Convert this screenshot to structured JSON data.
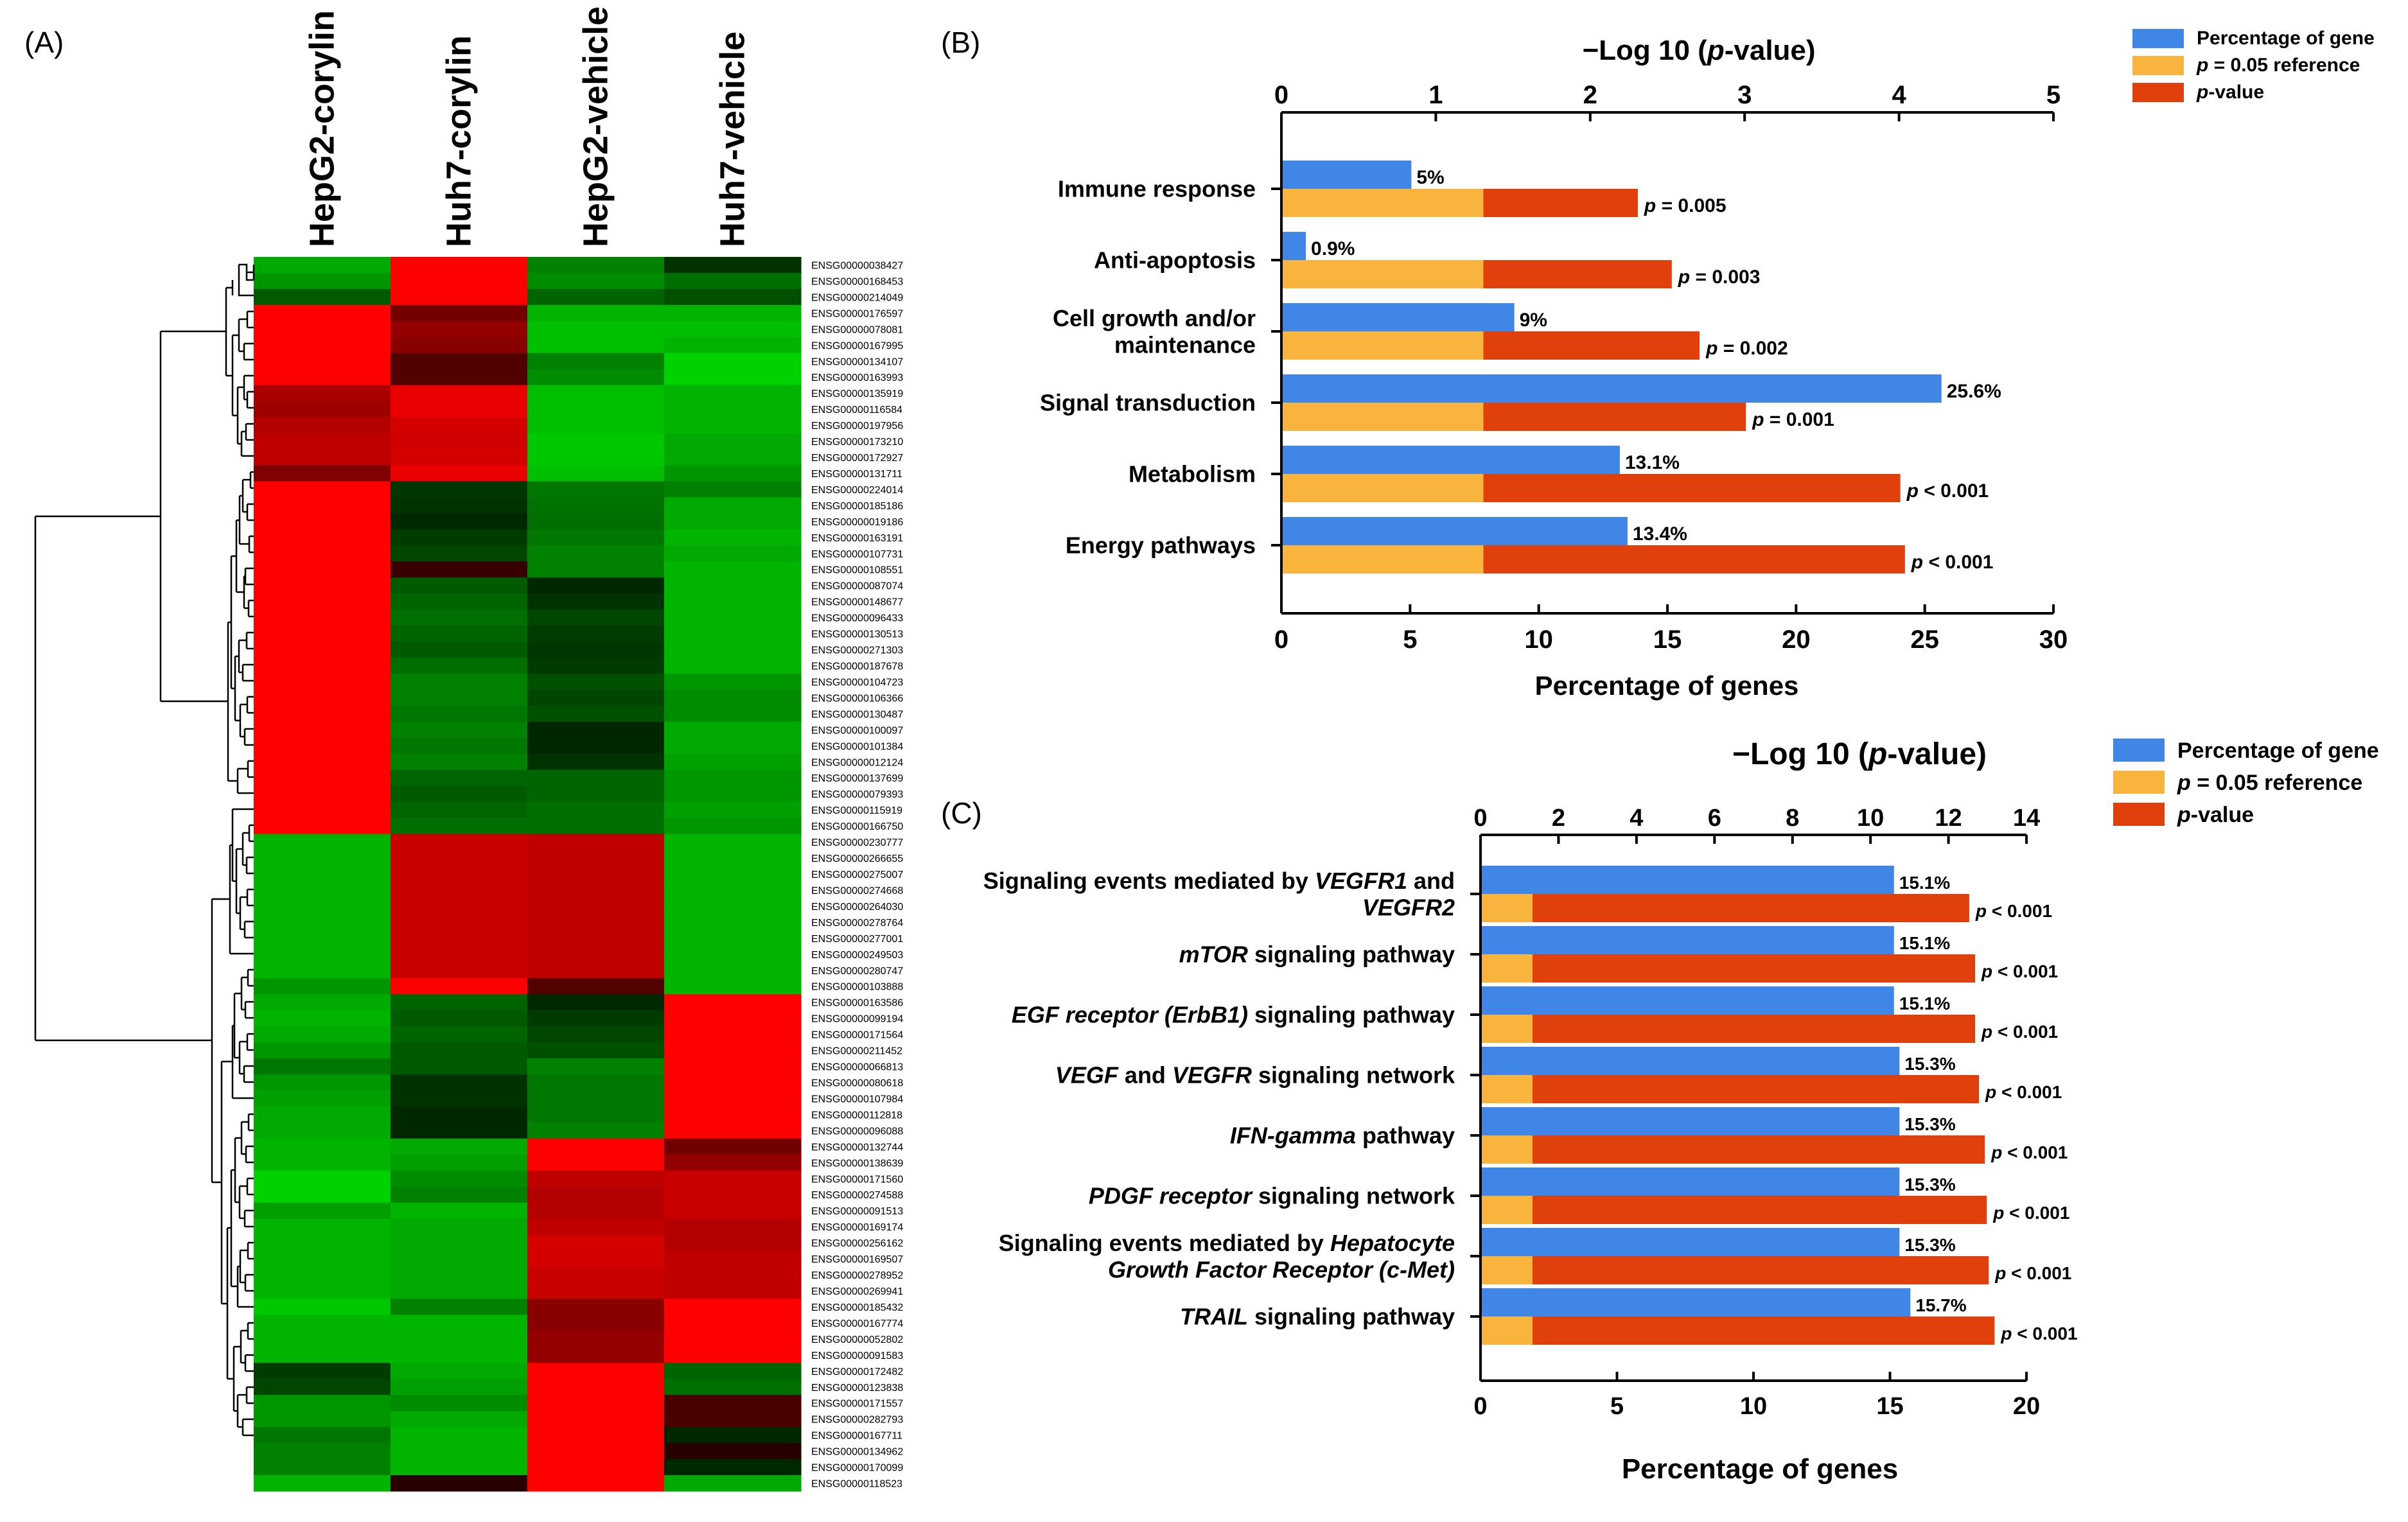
{
  "panel_labels": {
    "a": "(A)",
    "b": "(B)",
    "c": "(C)"
  },
  "colors": {
    "blue": "#3F86E6",
    "yellow": "#F9B43D",
    "red": "#E0410C",
    "hm_red": "#FF0000",
    "hm_green": "#00B000"
  },
  "chart_data": [
    {
      "panel": "A",
      "type": "heatmap",
      "columns": [
        "HepG2-corylin",
        "Huh7-corylin",
        "HepG2-vehicle",
        "Huh7-vehicle"
      ],
      "rows": [
        "ENSG00000038427",
        "ENSG00000168453",
        "ENSG00000214049",
        "ENSG00000176597",
        "ENSG00000078081",
        "ENSG00000167995",
        "ENSG00000134107",
        "ENSG00000163993",
        "ENSG00000135919",
        "ENSG00000116584",
        "ENSG00000197956",
        "ENSG00000173210",
        "ENSG00000172927",
        "ENSG00000131711",
        "ENSG00000224014",
        "ENSG00000185186",
        "ENSG00000019186",
        "ENSG00000163191",
        "ENSG00000107731",
        "ENSG00000108551",
        "ENSG00000087074",
        "ENSG00000148677",
        "ENSG00000096433",
        "ENSG00000130513",
        "ENSG00000271303",
        "ENSG00000187678",
        "ENSG00000104723",
        "ENSG00000106366",
        "ENSG00000130487",
        "ENSG00000100097",
        "ENSG00000101384",
        "ENSG00000012124",
        "ENSG00000137699",
        "ENSG00000079393",
        "ENSG00000115919",
        "ENSG00000166750",
        "ENSG00000230777",
        "ENSG00000266655",
        "ENSG00000275007",
        "ENSG00000274668",
        "ENSG00000264030",
        "ENSG00000278764",
        "ENSG00000277001",
        "ENSG00000249503",
        "ENSG00000280747",
        "ENSG00000103888",
        "ENSG00000163586",
        "ENSG00000099194",
        "ENSG00000171564",
        "ENSG00000211452",
        "ENSG00000066813",
        "ENSG00000080618",
        "ENSG00000107984",
        "ENSG00000112818",
        "ENSG00000096088",
        "ENSG00000132744",
        "ENSG00000138639",
        "ENSG00000171560",
        "ENSG00000274588",
        "ENSG00000091513",
        "ENSG00000169174",
        "ENSG00000256162",
        "ENSG00000169507",
        "ENSG00000278952",
        "ENSG00000269941",
        "ENSG00000185432",
        "ENSG00000167774",
        "ENSG00000052802",
        "ENSG00000091583",
        "ENSG00000172482",
        "ENSG00000123838",
        "ENSG00000171557",
        "ENSG00000282793",
        "ENSG00000167711",
        "ENSG00000134962",
        "ENSG00000170099",
        "ENSG00000118523"
      ],
      "values": [
        [
          -0.7,
          1,
          -0.5,
          -0.1
        ],
        [
          -0.6,
          1,
          -0.55,
          -0.4
        ],
        [
          -0.3,
          1,
          -0.35,
          -0.25
        ],
        [
          1,
          0.35,
          -0.75,
          -0.75
        ],
        [
          1,
          0.5,
          -0.8,
          -0.8
        ],
        [
          1,
          0.45,
          -0.8,
          -0.75
        ],
        [
          1,
          0.2,
          -0.5,
          -0.9
        ],
        [
          1,
          0.2,
          -0.55,
          -0.9
        ],
        [
          0.6,
          0.9,
          -0.8,
          -0.75
        ],
        [
          0.55,
          0.9,
          -0.8,
          -0.75
        ],
        [
          0.65,
          0.8,
          -0.8,
          -0.75
        ],
        [
          0.7,
          0.78,
          -0.85,
          -0.7
        ],
        [
          0.7,
          0.8,
          -0.85,
          -0.7
        ],
        [
          0.4,
          0.9,
          -0.8,
          -0.6
        ],
        [
          1,
          -0.12,
          -0.45,
          -0.5
        ],
        [
          1,
          -0.1,
          -0.42,
          -0.7
        ],
        [
          1,
          -0.05,
          -0.4,
          -0.7
        ],
        [
          1,
          -0.15,
          -0.45,
          -0.75
        ],
        [
          1,
          -0.2,
          -0.5,
          -0.7
        ],
        [
          1,
          0.08,
          -0.5,
          -0.75
        ],
        [
          1,
          -0.3,
          -0.05,
          -0.75
        ],
        [
          1,
          -0.35,
          -0.1,
          -0.75
        ],
        [
          1,
          -0.4,
          -0.2,
          -0.75
        ],
        [
          1,
          -0.35,
          -0.15,
          -0.75
        ],
        [
          1,
          -0.3,
          -0.12,
          -0.75
        ],
        [
          1,
          -0.4,
          -0.15,
          -0.75
        ],
        [
          1,
          -0.5,
          -0.25,
          -0.6
        ],
        [
          1,
          -0.5,
          -0.2,
          -0.55
        ],
        [
          1,
          -0.45,
          -0.25,
          -0.55
        ],
        [
          1,
          -0.5,
          -0.05,
          -0.7
        ],
        [
          1,
          -0.45,
          -0.05,
          -0.7
        ],
        [
          1,
          -0.5,
          -0.1,
          -0.65
        ],
        [
          1,
          -0.35,
          -0.35,
          -0.6
        ],
        [
          1,
          -0.3,
          -0.35,
          -0.6
        ],
        [
          1,
          -0.35,
          -0.4,
          -0.65
        ],
        [
          1,
          -0.4,
          -0.4,
          -0.6
        ],
        [
          -0.75,
          0.75,
          0.7,
          -0.75
        ],
        [
          -0.75,
          0.75,
          0.7,
          -0.75
        ],
        [
          -0.75,
          0.75,
          0.7,
          -0.75
        ],
        [
          -0.75,
          0.75,
          0.7,
          -0.75
        ],
        [
          -0.75,
          0.75,
          0.7,
          -0.75
        ],
        [
          -0.75,
          0.75,
          0.7,
          -0.75
        ],
        [
          -0.75,
          0.75,
          0.7,
          -0.75
        ],
        [
          -0.75,
          0.75,
          0.7,
          -0.75
        ],
        [
          -0.75,
          0.75,
          0.7,
          -0.75
        ],
        [
          -0.6,
          1,
          0.2,
          -0.75
        ],
        [
          -0.7,
          -0.35,
          -0.05,
          1
        ],
        [
          -0.75,
          -0.3,
          -0.15,
          1
        ],
        [
          -0.7,
          -0.35,
          -0.2,
          1
        ],
        [
          -0.6,
          -0.3,
          -0.25,
          1
        ],
        [
          -0.45,
          -0.3,
          -0.5,
          1
        ],
        [
          -0.6,
          -0.1,
          -0.45,
          1
        ],
        [
          -0.65,
          -0.1,
          -0.45,
          1
        ],
        [
          -0.7,
          -0.05,
          -0.45,
          1
        ],
        [
          -0.7,
          -0.05,
          -0.5,
          1
        ],
        [
          -0.75,
          -0.7,
          1,
          0.35
        ],
        [
          -0.75,
          -0.65,
          1,
          0.5
        ],
        [
          -0.9,
          -0.55,
          0.7,
          0.75
        ],
        [
          -0.9,
          -0.5,
          0.65,
          0.75
        ],
        [
          -0.65,
          -0.75,
          0.65,
          0.75
        ],
        [
          -0.75,
          -0.7,
          0.7,
          0.65
        ],
        [
          -0.75,
          -0.7,
          0.8,
          0.65
        ],
        [
          -0.75,
          -0.7,
          0.8,
          0.7
        ],
        [
          -0.75,
          -0.7,
          0.75,
          0.7
        ],
        [
          -0.75,
          -0.7,
          0.75,
          0.7
        ],
        [
          -0.85,
          -0.5,
          0.45,
          1
        ],
        [
          -0.75,
          -0.75,
          0.45,
          1
        ],
        [
          -0.75,
          -0.75,
          0.5,
          1
        ],
        [
          -0.75,
          -0.75,
          0.5,
          1
        ],
        [
          -0.15,
          -0.7,
          1,
          -0.35
        ],
        [
          -0.2,
          -0.65,
          1,
          -0.4
        ],
        [
          -0.6,
          -0.55,
          1,
          0.15
        ],
        [
          -0.6,
          -0.7,
          1,
          0.15
        ],
        [
          -0.45,
          -0.75,
          1,
          -0.05
        ],
        [
          -0.5,
          -0.75,
          1,
          0
        ],
        [
          -0.5,
          -0.75,
          1,
          -0.05
        ],
        [
          -0.75,
          0,
          1,
          -0.7
        ]
      ],
      "dendrogram": "hierarchical clustering"
    },
    {
      "panel": "B",
      "type": "bar",
      "orientation": "horizontal",
      "categories": [
        "Immune response",
        "Anti-apoptosis",
        "Cell growth and/or maintenance",
        "Signal transduction",
        "Metabolism",
        "Energy pathways"
      ],
      "category_lines": [
        [
          "Immune response"
        ],
        [
          "Anti-apoptosis"
        ],
        [
          "Cell growth and/or",
          "maintenance"
        ],
        [
          "Signal transduction"
        ],
        [
          "Metabolism"
        ],
        [
          "Energy pathways"
        ]
      ],
      "series": [
        {
          "name": "Percentage of gene",
          "color": "#3F86E6",
          "values": [
            5,
            0.9,
            9,
            25.6,
            13.1,
            13.4
          ],
          "labels": [
            "5%",
            "0.9%",
            "9%",
            "25.6%",
            "13.1%",
            "13.4%"
          ]
        },
        {
          "name": "p = 0.05 reference",
          "color": "#F9B43D",
          "values": [
            1.3,
            1.3,
            1.3,
            1.3,
            1.3,
            1.3
          ]
        },
        {
          "name": "p-value",
          "color": "#E0410C",
          "values": [
            2.3,
            2.52,
            2.7,
            3.0,
            4.0,
            4.03
          ],
          "labels": [
            "p = 0.005",
            "p = 0.003",
            "p = 0.002",
            "p = 0.001",
            "p < 0.001",
            "p < 0.001"
          ]
        }
      ],
      "xlabel": "Percentage of genes",
      "x2label": "−Log 10 (p-value)",
      "xlim": [
        0,
        30
      ],
      "x2lim": [
        0,
        5
      ],
      "xticks": [
        "0",
        "5",
        "10",
        "15",
        "20",
        "25",
        "30"
      ],
      "x2ticks": [
        "0",
        "1",
        "2",
        "3",
        "4",
        "5"
      ],
      "legend": "top-right"
    },
    {
      "panel": "C",
      "type": "bar",
      "orientation": "horizontal",
      "categories": [
        "Signaling events mediated by VEGFR1 and VEGFR2",
        "mTOR signaling pathway",
        "EGF receptor (ErbB1) signaling pathway",
        "VEGF and VEGFR signaling network",
        "IFN-gamma pathway",
        "PDGF receptor signaling network",
        "Signaling events mediated by Hepatocyte Growth Factor Receptor (c-Met)",
        "TRAIL signaling pathway"
      ],
      "category_lines": [
        [
          [
            {
              "t": "Signaling events mediated by "
            },
            {
              "t": "VEGFR1",
              "i": true
            },
            {
              "t": " and"
            }
          ],
          [
            {
              "t": "VEGFR2",
              "i": true
            }
          ]
        ],
        [
          [
            {
              "t": "mTOR",
              "i": true
            },
            {
              "t": " signaling pathway"
            }
          ]
        ],
        [
          [
            {
              "t": "EGF receptor (ErbB1)",
              "i": true
            },
            {
              "t": " signaling pathway"
            }
          ]
        ],
        [
          [
            {
              "t": "VEGF",
              "i": true
            },
            {
              "t": " and "
            },
            {
              "t": "VEGFR",
              "i": true
            },
            {
              "t": " signaling network"
            }
          ]
        ],
        [
          [
            {
              "t": "IFN-gamma",
              "i": true
            },
            {
              "t": " pathway"
            }
          ]
        ],
        [
          [
            {
              "t": "PDGF receptor",
              "i": true
            },
            {
              "t": " signaling network"
            }
          ]
        ],
        [
          [
            {
              "t": "Signaling events mediated by "
            },
            {
              "t": "Hepatocyte",
              "i": true
            }
          ],
          [
            {
              "t": "Growth Factor Receptor (c-Met)",
              "i": true
            }
          ]
        ],
        [
          [
            {
              "t": "TRAIL",
              "i": true
            },
            {
              "t": " signaling pathway"
            }
          ]
        ]
      ],
      "series": [
        {
          "name": "Percentage of gene",
          "color": "#3F86E6",
          "values": [
            15.1,
            15.1,
            15.1,
            15.3,
            15.3,
            15.3,
            15.3,
            15.7
          ],
          "labels": [
            "15.1%",
            "15.1%",
            "15.1%",
            "15.3%",
            "15.3%",
            "15.3%",
            "15.3%",
            "15.7%"
          ]
        },
        {
          "name": "p = 0.05 reference",
          "color": "#F9B43D",
          "values": [
            1.3,
            1.3,
            1.3,
            1.3,
            1.3,
            1.3,
            1.3,
            1.3
          ]
        },
        {
          "name": "p-value",
          "color": "#E0410C",
          "values": [
            12.5,
            12.65,
            12.65,
            12.75,
            12.9,
            12.95,
            13.0,
            13.15
          ],
          "labels": [
            "p < 0.001",
            "p < 0.001",
            "p < 0.001",
            "p < 0.001",
            "p < 0.001",
            "p < 0.001",
            "p < 0.001",
            "p < 0.001"
          ]
        }
      ],
      "xlabel": "Percentage of genes",
      "x2label": "−Log 10 (p-value)",
      "xlim": [
        0,
        20
      ],
      "x2lim": [
        0,
        14
      ],
      "xticks": [
        "0",
        "5",
        "10",
        "15",
        "20"
      ],
      "x2ticks": [
        "0",
        "2",
        "4",
        "6",
        "8",
        "10",
        "12",
        "14"
      ],
      "legend": "top-right"
    }
  ]
}
